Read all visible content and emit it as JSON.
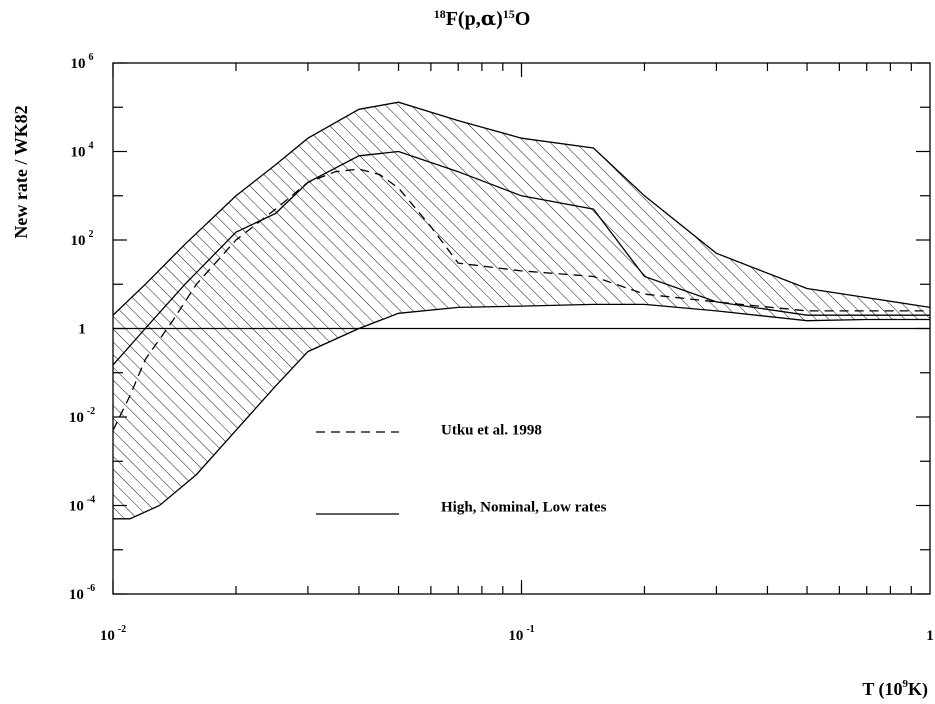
{
  "chart_data": {
    "type": "line",
    "title": {
      "pre_sup": "18",
      "main": "F(p,",
      "alpha": "α",
      "close": ")",
      "post_sup": "15",
      "end": "O"
    },
    "xlabel": {
      "pre": "T (10",
      "sup": "9",
      "post": "K)"
    },
    "ylabel": "New rate / WK82",
    "xscale": "log",
    "yscale": "log",
    "xlim": [
      0.01,
      1
    ],
    "ylim": [
      1e-06,
      1000000.0
    ],
    "x_ticks": [
      {
        "base": "10",
        "exp": "-2"
      },
      {
        "base": "10",
        "exp": "-1"
      },
      {
        "base": "1",
        "exp": ""
      }
    ],
    "y_ticks": [
      {
        "base": "10",
        "exp": "6"
      },
      {
        "base": "10",
        "exp": "4"
      },
      {
        "base": "10",
        "exp": "2"
      },
      {
        "base": "1",
        "exp": ""
      },
      {
        "base": "10",
        "exp": "-2"
      },
      {
        "base": "10",
        "exp": "-4"
      },
      {
        "base": "10",
        "exp": "-6"
      }
    ],
    "reference_line": {
      "y": 1
    },
    "band": {
      "fill": "hatched",
      "upper": "High",
      "lower": "Low"
    },
    "series": [
      {
        "name": "High",
        "style": "solid",
        "x": [
          0.01,
          0.012,
          0.015,
          0.02,
          0.025,
          0.03,
          0.04,
          0.05,
          0.07,
          0.1,
          0.15,
          0.2,
          0.3,
          0.5,
          0.7,
          1.0
        ],
        "y": [
          2.0,
          10,
          80,
          1000,
          5000,
          20000,
          90000,
          130000,
          50000,
          20000,
          12000,
          1000,
          50,
          8,
          5,
          3
        ]
      },
      {
        "name": "Nominal",
        "style": "solid",
        "x": [
          0.01,
          0.012,
          0.015,
          0.02,
          0.025,
          0.03,
          0.04,
          0.05,
          0.07,
          0.1,
          0.15,
          0.2,
          0.3,
          0.5,
          0.7,
          1.0
        ],
        "y": [
          0.15,
          1.0,
          10,
          150,
          400,
          2000,
          8000,
          10000,
          3500,
          1000,
          500,
          15,
          4,
          2,
          2,
          2
        ]
      },
      {
        "name": "Low",
        "style": "solid",
        "x": [
          0.01,
          0.011,
          0.013,
          0.016,
          0.02,
          0.025,
          0.03,
          0.04,
          0.05,
          0.07,
          0.1,
          0.15,
          0.2,
          0.3,
          0.5,
          0.7,
          1.0
        ],
        "y": [
          5e-05,
          5e-05,
          0.0001,
          0.0005,
          0.005,
          0.05,
          0.3,
          1.0,
          2.2,
          3.0,
          3.2,
          3.5,
          3.5,
          2.5,
          1.5,
          1.6,
          1.6
        ]
      },
      {
        "name": "Utku et al. 1998",
        "style": "dashed",
        "x": [
          0.01,
          0.011,
          0.012,
          0.014,
          0.016,
          0.02,
          0.025,
          0.03,
          0.035,
          0.04,
          0.045,
          0.05,
          0.06,
          0.07,
          0.1,
          0.15,
          0.2,
          0.3,
          0.5,
          1.0
        ],
        "y": [
          0.005,
          0.03,
          0.2,
          1.5,
          10,
          100,
          500,
          2000,
          3500,
          4000,
          3000,
          1500,
          200,
          30,
          20,
          15,
          6,
          4,
          2.5,
          2.5
        ]
      }
    ],
    "legend": {
      "placement": "center",
      "entries": [
        {
          "label": "Utku et al. 1998",
          "style": "dashed"
        },
        {
          "label": "High, Nominal, Low rates",
          "style": "solid"
        }
      ]
    },
    "grid": false
  }
}
